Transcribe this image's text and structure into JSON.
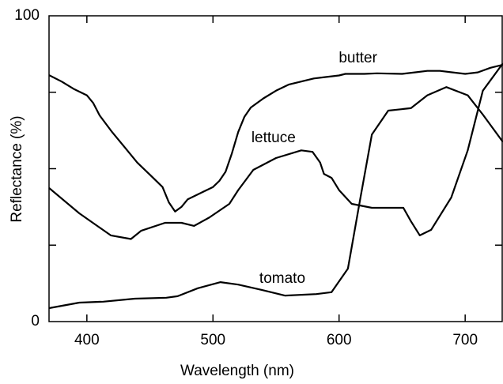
{
  "chart_data": {
    "type": "line",
    "xlabel": "Wavelength (nm)",
    "ylabel": "Reflectance (%)",
    "xlim": [
      370,
      730
    ],
    "xticks": [
      400,
      500,
      600,
      700
    ],
    "ylim": [
      0,
      100
    ],
    "yticks": [
      0,
      100
    ],
    "yminor_ticks": [
      25,
      50,
      75
    ],
    "series": [
      {
        "name": "butter",
        "color": "#000000",
        "x": [
          370,
          380,
          390,
          400,
          405,
          410,
          420,
          430,
          440,
          450,
          460,
          465,
          470,
          475,
          480,
          490,
          500,
          505,
          510,
          515,
          520,
          525,
          530,
          540,
          550,
          560,
          570,
          580,
          590,
          600,
          605,
          620,
          630,
          650,
          660,
          670,
          680,
          690,
          700,
          710,
          720,
          730
        ],
        "values": [
          80.6,
          78.5,
          76,
          74,
          71.5,
          67.5,
          62,
          57,
          52,
          48,
          44,
          39,
          36,
          37.5,
          40,
          42,
          44,
          46,
          49,
          55,
          62,
          67,
          70,
          73,
          75.5,
          77.5,
          78.5,
          79.5,
          80,
          80.5,
          81,
          81,
          81.2,
          81,
          81.5,
          82,
          82,
          81.5,
          81,
          81.5,
          83,
          84
        ]
      },
      {
        "name": "lettuce",
        "color": "#000000",
        "x": [
          370,
          394,
          419,
          435,
          443,
          462,
          475,
          485,
          497,
          513,
          520,
          532,
          550,
          570,
          579,
          585,
          588,
          594,
          600,
          610,
          626,
          651,
          657,
          664,
          673,
          689,
          702,
          714,
          730
        ],
        "values": [
          43.7,
          35.4,
          28.2,
          27,
          29.7,
          32.3,
          32.3,
          31.3,
          34,
          38.5,
          43,
          49.6,
          53.5,
          56,
          55.5,
          52,
          48.3,
          47,
          43,
          38.5,
          37.2,
          37.2,
          32.8,
          28.2,
          30,
          40.6,
          56,
          75.5,
          84.5
        ]
      },
      {
        "name": "tomato",
        "color": "#000000",
        "x": [
          370,
          394,
          413,
          438,
          463,
          472,
          488,
          506,
          520,
          539,
          557,
          582,
          594,
          607,
          617,
          626,
          639,
          657,
          670,
          685,
          702,
          714,
          730
        ],
        "values": [
          4.4,
          6.2,
          6.5,
          7.5,
          7.8,
          8.3,
          10.9,
          12.9,
          12.1,
          10.3,
          8.5,
          9,
          9.6,
          17.3,
          40.6,
          61.2,
          69,
          69.8,
          74,
          76.7,
          74,
          67.7,
          58.7
        ]
      }
    ],
    "annotations": [
      {
        "text": "butter",
        "x": 615,
        "y": 86
      },
      {
        "text": "lettuce",
        "x": 548,
        "y": 60
      },
      {
        "text": "tomato",
        "x": 555,
        "y": 14
      }
    ]
  }
}
